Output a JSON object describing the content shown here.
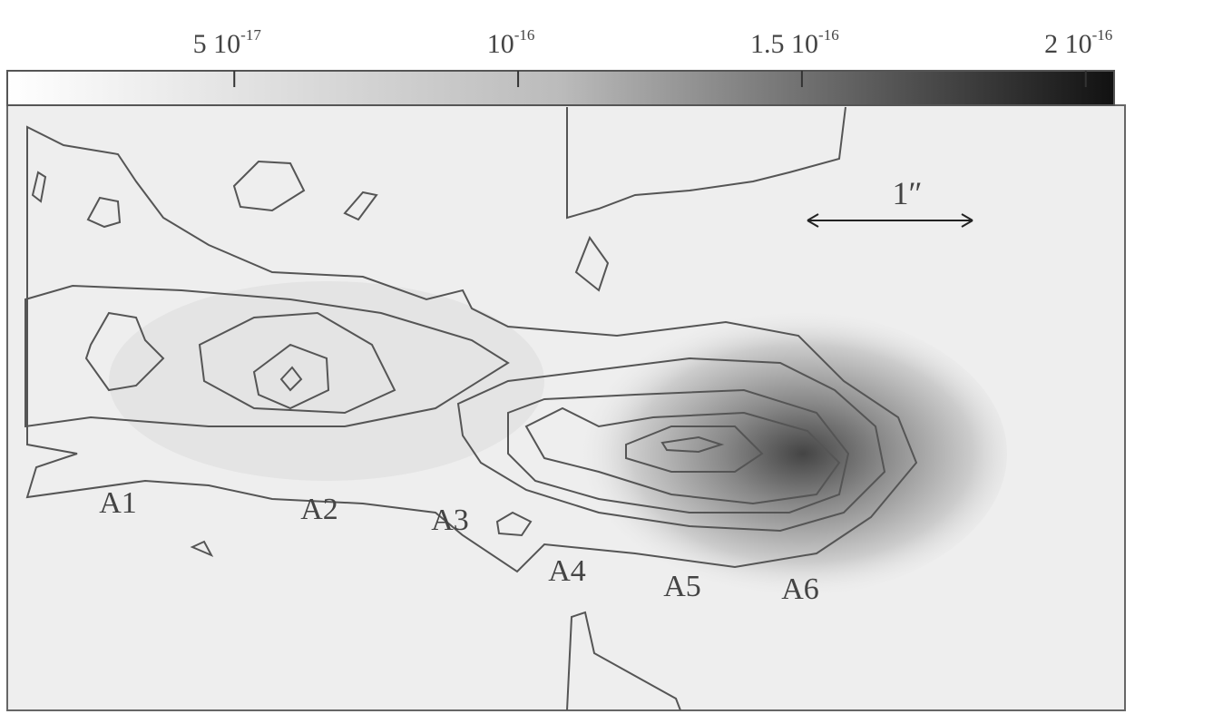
{
  "chart_data": {
    "type": "contour-image",
    "colorbar": {
      "lim": [
        1e-17,
        2.05e-16
      ],
      "ticks": [
        {
          "value": 5e-17,
          "label": "5 10",
          "exponent": "-17"
        },
        {
          "value": 1e-16,
          "label": "10",
          "exponent": "-16"
        },
        {
          "value": 1.5e-16,
          "label": "1.5 10",
          "exponent": "-16"
        },
        {
          "value": 2e-16,
          "label": "2 10",
          "exponent": "-16"
        }
      ]
    },
    "scale_label": "1″",
    "knots": [
      "A1",
      "A2",
      "A3",
      "A4",
      "A5",
      "A6"
    ]
  }
}
